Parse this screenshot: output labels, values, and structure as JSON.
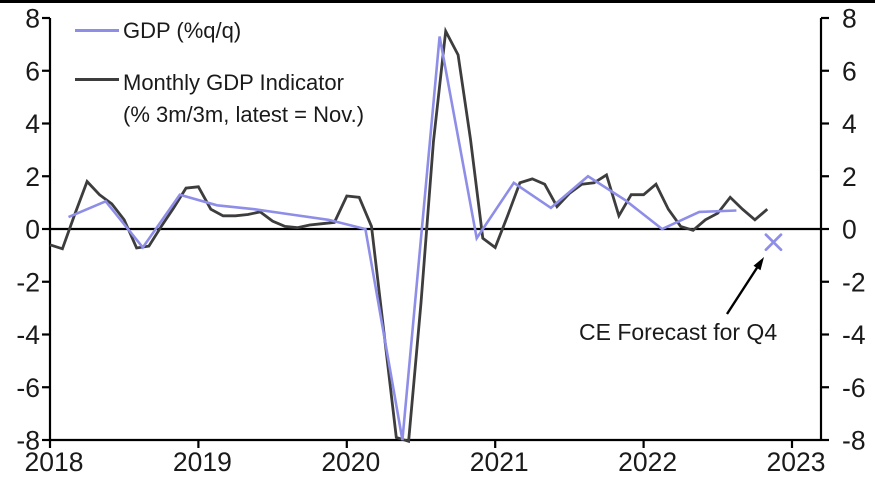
{
  "chart_data": {
    "type": "line",
    "title": "",
    "grid": false,
    "x_axis": {
      "tick_labels": [
        "2018",
        "2019",
        "2020",
        "2021",
        "2022",
        "2023"
      ]
    },
    "y_axis": {
      "ticks": [
        8,
        6,
        4,
        2,
        0,
        -2,
        -4,
        -6,
        -8
      ],
      "range": [
        -8,
        8
      ],
      "label_sides": "both"
    },
    "series": [
      {
        "name": "GDP (%q/q)",
        "frequency": "quarterly",
        "start": "2018-Q1",
        "color": "#8e8ee8",
        "values": [
          0.45,
          1.05,
          -0.7,
          1.3,
          0.9,
          0.75,
          0.55,
          0.35,
          0.0,
          -8.0,
          7.3,
          -0.35,
          1.75,
          0.8,
          2.0,
          1.1,
          0.0,
          0.65,
          0.7
        ]
      },
      {
        "name": "Monthly GDP Indicator (% 3m/3m, latest = Nov.)",
        "frequency": "monthly",
        "start": "2018-01",
        "color": "#3d3d3d",
        "values": [
          -0.6,
          -0.75,
          0.55,
          1.8,
          1.3,
          0.95,
          0.35,
          -0.72,
          -0.65,
          0.1,
          0.8,
          1.55,
          1.6,
          0.75,
          0.5,
          0.5,
          0.55,
          0.65,
          0.3,
          0.1,
          0.05,
          0.15,
          0.2,
          0.25,
          1.25,
          1.2,
          0.1,
          -3.9,
          -7.9,
          -8.05,
          -2.8,
          3.3,
          7.5,
          6.6,
          3.4,
          -0.35,
          -0.7,
          0.5,
          1.75,
          1.9,
          1.7,
          0.85,
          1.35,
          1.7,
          1.75,
          2.05,
          0.5,
          1.3,
          1.3,
          1.7,
          0.75,
          0.1,
          -0.05,
          0.35,
          0.6,
          1.2,
          0.75,
          0.35,
          0.75
        ]
      }
    ],
    "forecast_point": {
      "period": "2022-Q4",
      "value": -0.5,
      "marker": "x",
      "color": "#8e8ee8"
    },
    "legend": {
      "position": "top-left",
      "entries": [
        {
          "label": "GDP (%q/q)"
        },
        {
          "label_line1": "Monthly GDP Indicator",
          "label_line2": "(% 3m/3m, latest = Nov.)"
        }
      ]
    },
    "annotation": {
      "text": "CE Forecast for Q4"
    }
  },
  "colors": {
    "background": "#ffffff",
    "axis": "#000000",
    "text": "#1a1a1a",
    "gdp_line": "#8e8ee8",
    "monthly_line": "#3d3d3d"
  }
}
